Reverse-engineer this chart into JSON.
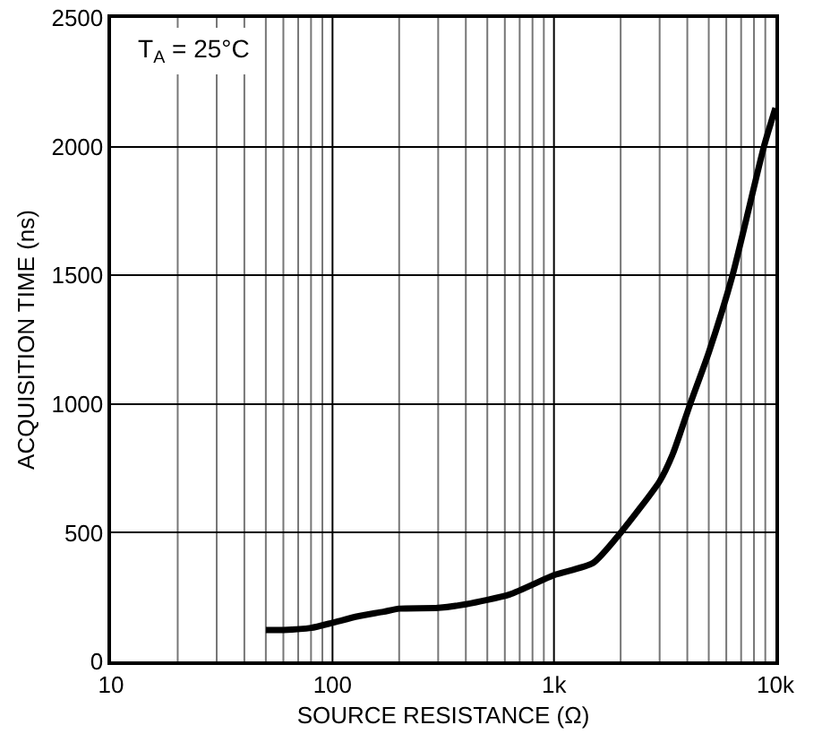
{
  "chart_data": {
    "type": "line",
    "xlabel": "SOURCE RESISTANCE (Ω)",
    "ylabel": "ACQUISITION TIME (ns)",
    "annotations": [
      "T$_{A}$ = 25°C"
    ],
    "x": [
      50,
      60,
      80,
      100,
      130,
      170,
      200,
      300,
      400,
      630,
      1000,
      1500,
      2000,
      3000,
      3440,
      4120,
      5000,
      6400,
      8870,
      10000
    ],
    "series": [
      {
        "color": "#000000",
        "values": [
          122,
          122,
          130,
          150,
          175,
          193,
          205,
          208,
          222,
          260,
          335,
          382,
          500,
          700,
          806,
          1000,
          1200,
          1500,
          2000,
          2150
        ]
      }
    ],
    "log": "x",
    "xlim": [
      10,
      10000
    ],
    "ylim": [
      0,
      2500
    ],
    "xticks": [
      10,
      100,
      {
        "value": 1000,
        "label": "1k"
      },
      {
        "value": 10000,
        "label": "10k"
      }
    ],
    "yticks": [
      0,
      500,
      1000,
      1500,
      2000,
      2500
    ],
    "grid": true,
    "marker": "none",
    "line_style": "solid"
  }
}
